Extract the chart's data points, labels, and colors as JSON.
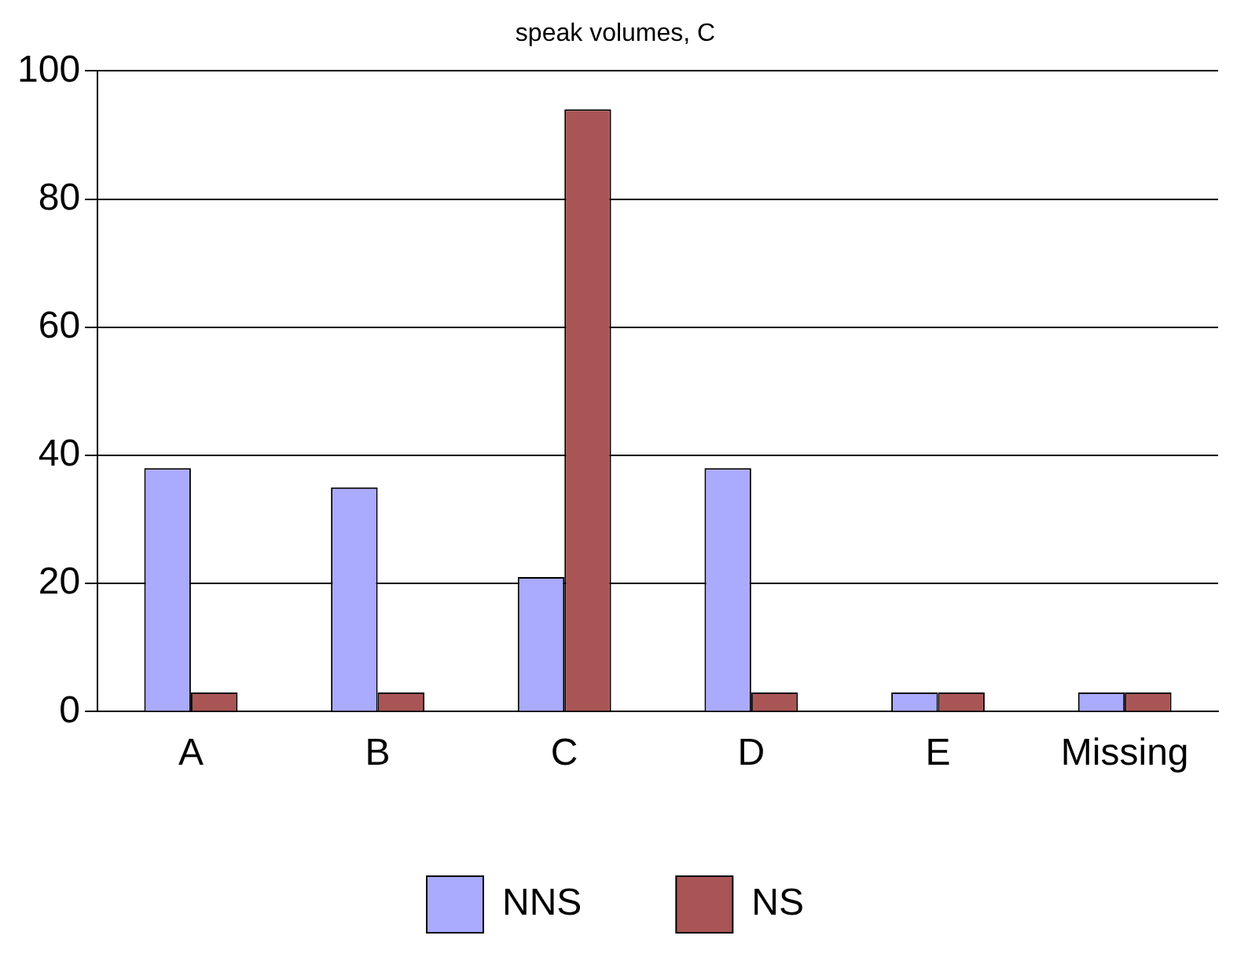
{
  "chart_data": {
    "type": "bar",
    "title": "speak volumes, C",
    "categories": [
      "A",
      "B",
      "C",
      "D",
      "E",
      "Missing"
    ],
    "series": [
      {
        "name": "NNS",
        "color": "#aaaaff",
        "values": [
          38,
          35,
          21,
          38,
          3,
          3
        ]
      },
      {
        "name": "NS",
        "color": "#aa5555",
        "values": [
          3,
          3,
          94,
          3,
          3,
          3
        ]
      }
    ],
    "ylim": [
      0,
      100
    ],
    "yticks": [
      0,
      20,
      40,
      60,
      80,
      100
    ],
    "grid": "y",
    "legend": "bottom"
  }
}
